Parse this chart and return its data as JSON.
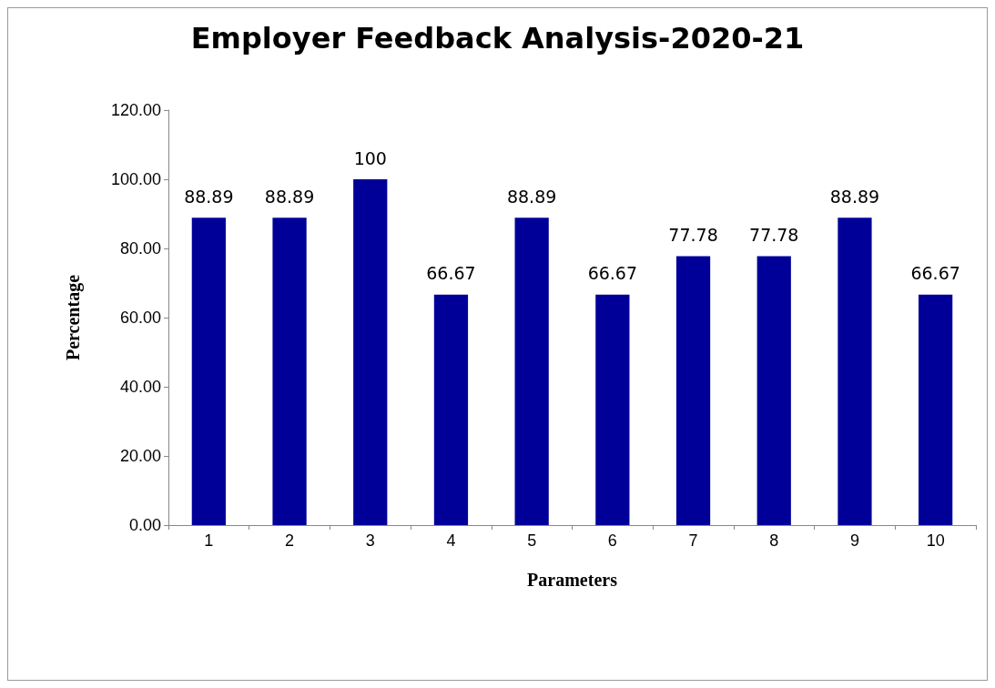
{
  "chart_data": {
    "type": "bar",
    "title": "Employer Feedback Analysis-2020-21",
    "xlabel": "Parameters",
    "ylabel": "Percentage",
    "categories": [
      "1",
      "2",
      "3",
      "4",
      "5",
      "6",
      "7",
      "8",
      "9",
      "10"
    ],
    "values": [
      88.89,
      88.89,
      100,
      66.67,
      88.89,
      66.67,
      77.78,
      77.78,
      88.89,
      66.67
    ],
    "color": "#000099",
    "ylim": [
      0,
      120
    ],
    "yticks": [
      {
        "value": 0,
        "label": "0.00"
      },
      {
        "value": 20,
        "label": "20.00"
      },
      {
        "value": 40,
        "label": "40.00"
      },
      {
        "value": 60,
        "label": "60.00"
      },
      {
        "value": 80,
        "label": "80.00"
      },
      {
        "value": 100,
        "label": "100.00"
      },
      {
        "value": 120,
        "label": "120.00"
      }
    ],
    "data_labels": true,
    "grid": false
  }
}
